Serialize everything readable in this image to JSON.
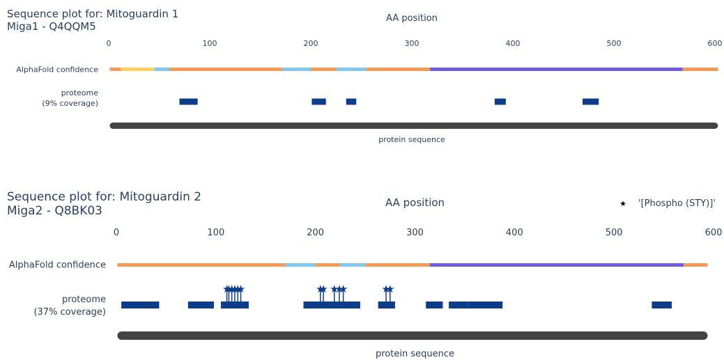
{
  "chart_data": [
    {
      "type": "sequence-plot",
      "title": "Sequence plot for: Mitoguardin 1",
      "subtitle": "Miga1 - Q4QQM5",
      "xlabel": "AA position",
      "xlim": [
        0,
        600
      ],
      "xticks": [
        0,
        100,
        200,
        300,
        400,
        500,
        600
      ],
      "sequence_length": 603,
      "tracks": {
        "alphafold_label": "AlphaFold confidence",
        "proteome_label": "proteome",
        "proteome_coverage": "(9% coverage)",
        "sequence_label": "protein sequence"
      },
      "alphafold_segments": [
        {
          "start": 1,
          "end": 12,
          "color": "#f59a5b"
        },
        {
          "start": 12,
          "end": 45,
          "color": "#fdd261"
        },
        {
          "start": 45,
          "end": 60,
          "color": "#80c8f0"
        },
        {
          "start": 60,
          "end": 172,
          "color": "#f59a5b"
        },
        {
          "start": 172,
          "end": 200,
          "color": "#80c8f0"
        },
        {
          "start": 200,
          "end": 225,
          "color": "#f59a5b"
        },
        {
          "start": 225,
          "end": 255,
          "color": "#80c8f0"
        },
        {
          "start": 255,
          "end": 318,
          "color": "#f59a5b"
        },
        {
          "start": 318,
          "end": 568,
          "color": "#6f5ddb"
        },
        {
          "start": 568,
          "end": 603,
          "color": "#f59a5b"
        }
      ],
      "peptides": [
        {
          "start": 70,
          "end": 88
        },
        {
          "start": 201,
          "end": 215
        },
        {
          "start": 235,
          "end": 245
        },
        {
          "start": 382,
          "end": 393
        },
        {
          "start": 469,
          "end": 485
        }
      ],
      "modifications": []
    },
    {
      "type": "sequence-plot",
      "title": "Sequence plot for: Mitoguardin 2",
      "subtitle": "Miga2 - Q8BK03",
      "xlabel": "AA position",
      "xlim": [
        0,
        600
      ],
      "xticks": [
        0,
        100,
        200,
        300,
        400,
        500,
        600
      ],
      "sequence_length": 594,
      "legend": {
        "symbol": "★",
        "label": "'[Phospho (STY)]'",
        "placement": "top-right"
      },
      "tracks": {
        "alphafold_label": "AlphaFold confidence",
        "proteome_label": "proteome",
        "proteome_coverage": "(37% coverage)",
        "sequence_label": "protein sequence"
      },
      "alphafold_segments": [
        {
          "start": 1,
          "end": 170,
          "color": "#f59a5b"
        },
        {
          "start": 170,
          "end": 200,
          "color": "#80c8f0"
        },
        {
          "start": 200,
          "end": 225,
          "color": "#f59a5b"
        },
        {
          "start": 225,
          "end": 250,
          "color": "#80c8f0"
        },
        {
          "start": 250,
          "end": 315,
          "color": "#f59a5b"
        },
        {
          "start": 315,
          "end": 570,
          "color": "#6f5ddb"
        },
        {
          "start": 570,
          "end": 594,
          "color": "#f59a5b"
        }
      ],
      "peptides": [
        {
          "start": 5,
          "end": 43
        },
        {
          "start": 72,
          "end": 98
        },
        {
          "start": 105,
          "end": 133
        },
        {
          "start": 188,
          "end": 245
        },
        {
          "start": 263,
          "end": 280
        },
        {
          "start": 311,
          "end": 328
        },
        {
          "start": 334,
          "end": 353
        },
        {
          "start": 353,
          "end": 388
        },
        {
          "start": 538,
          "end": 558
        }
      ],
      "modifications": [
        111,
        113,
        116,
        119,
        122,
        125,
        205,
        208,
        219,
        224,
        228,
        271,
        275
      ]
    }
  ]
}
